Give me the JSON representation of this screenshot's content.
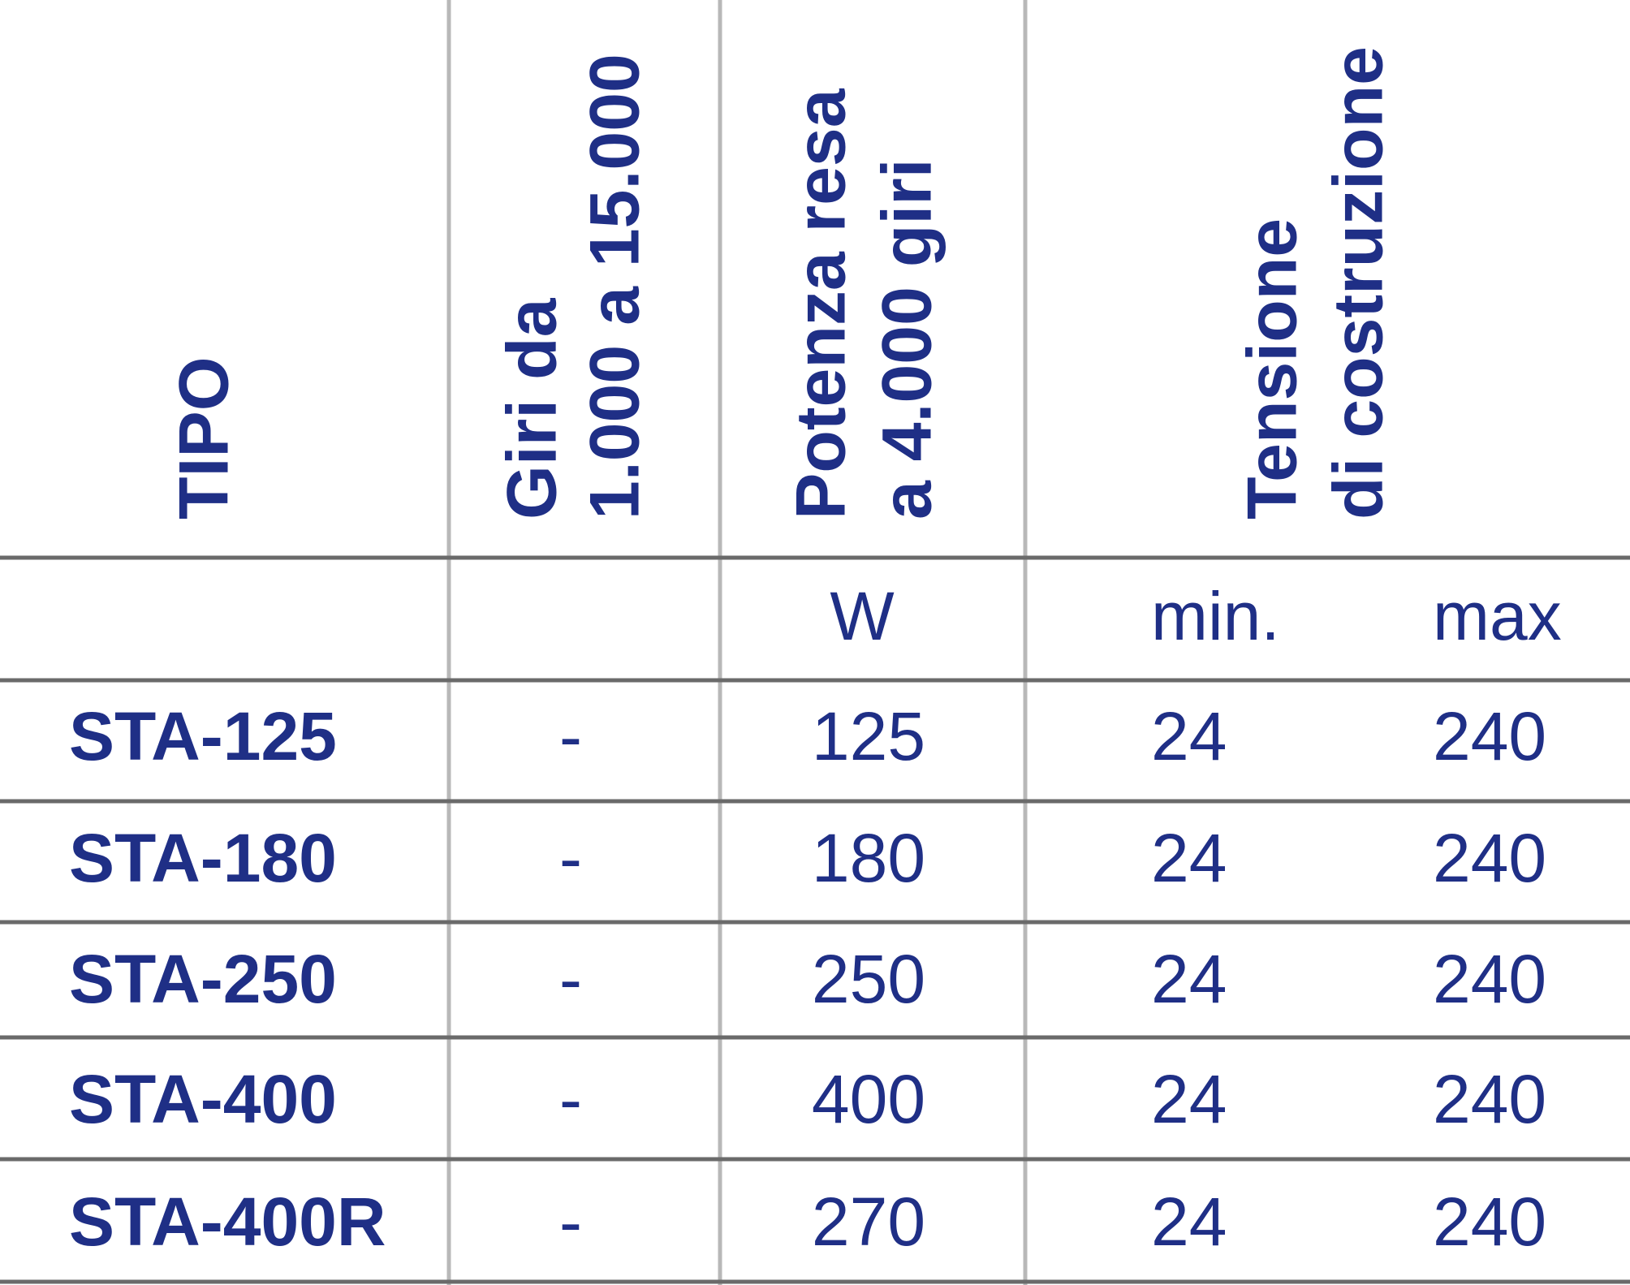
{
  "table": {
    "header": {
      "tipo": [
        "TIPO"
      ],
      "giri": [
        "Giri da",
        "1.000 a 15.000"
      ],
      "potenza": [
        "Potenza resa",
        "a 4.000 giri"
      ],
      "tensione": [
        "Tensione",
        "di costruzione"
      ]
    },
    "units": {
      "potenza": "W",
      "min": "min.",
      "max": "max"
    },
    "rows": [
      [
        "STA-125",
        "-",
        125,
        24,
        240
      ],
      [
        "STA-180",
        "-",
        180,
        24,
        240
      ],
      [
        "STA-250",
        "-",
        250,
        24,
        240
      ],
      [
        "STA-400",
        "-",
        400,
        24,
        240
      ],
      [
        "STA-400R",
        "-",
        270,
        24,
        240
      ]
    ]
  }
}
